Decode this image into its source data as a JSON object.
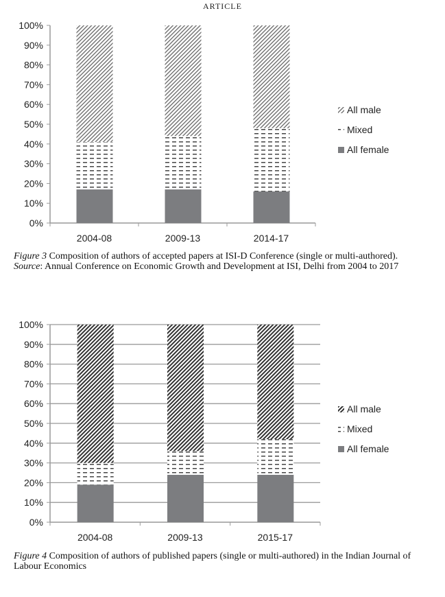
{
  "header": "ARTICLE",
  "chart_data": [
    {
      "type": "bar",
      "stacked": true,
      "categories": [
        "2004-08",
        "2009-13",
        "2014-17"
      ],
      "series": [
        {
          "name": "All female",
          "values": [
            17,
            17,
            16
          ]
        },
        {
          "name": "Mixed",
          "values": [
            24,
            27,
            32
          ]
        },
        {
          "name": "All male",
          "values": [
            59,
            56,
            52
          ]
        }
      ],
      "ylim": [
        0,
        100
      ],
      "yticks": [
        "0%",
        "10%",
        "20%",
        "30%",
        "40%",
        "50%",
        "60%",
        "70%",
        "80%",
        "90%",
        "100%"
      ],
      "grid": false,
      "legend": "right"
    },
    {
      "type": "bar",
      "stacked": true,
      "categories": [
        "2004-08",
        "2009-13",
        "2015-17"
      ],
      "series": [
        {
          "name": "All female",
          "values": [
            19,
            24,
            24
          ]
        },
        {
          "name": "Mixed",
          "values": [
            11,
            12,
            18
          ]
        },
        {
          "name": "All male",
          "values": [
            70,
            64,
            58
          ]
        }
      ],
      "ylim": [
        0,
        100
      ],
      "yticks": [
        "0%",
        "10%",
        "20%",
        "30%",
        "40%",
        "50%",
        "60%",
        "70%",
        "80%",
        "90%",
        "100%"
      ],
      "grid": true,
      "legend": "right"
    }
  ],
  "captions": [
    {
      "label": "Figure  3",
      "text": " Composition of authors of accepted papers at ISI-D Conference (single or multi-authored).",
      "source_label": "Source",
      "source_text": ": Annual Conference on Economic Growth and Development at ISI, Delhi from 2004 to 2017"
    },
    {
      "label": "Figure  4",
      "text": " Composition of authors of published papers (single or multi-authored) in the Indian Journal of Labour Economics"
    }
  ]
}
